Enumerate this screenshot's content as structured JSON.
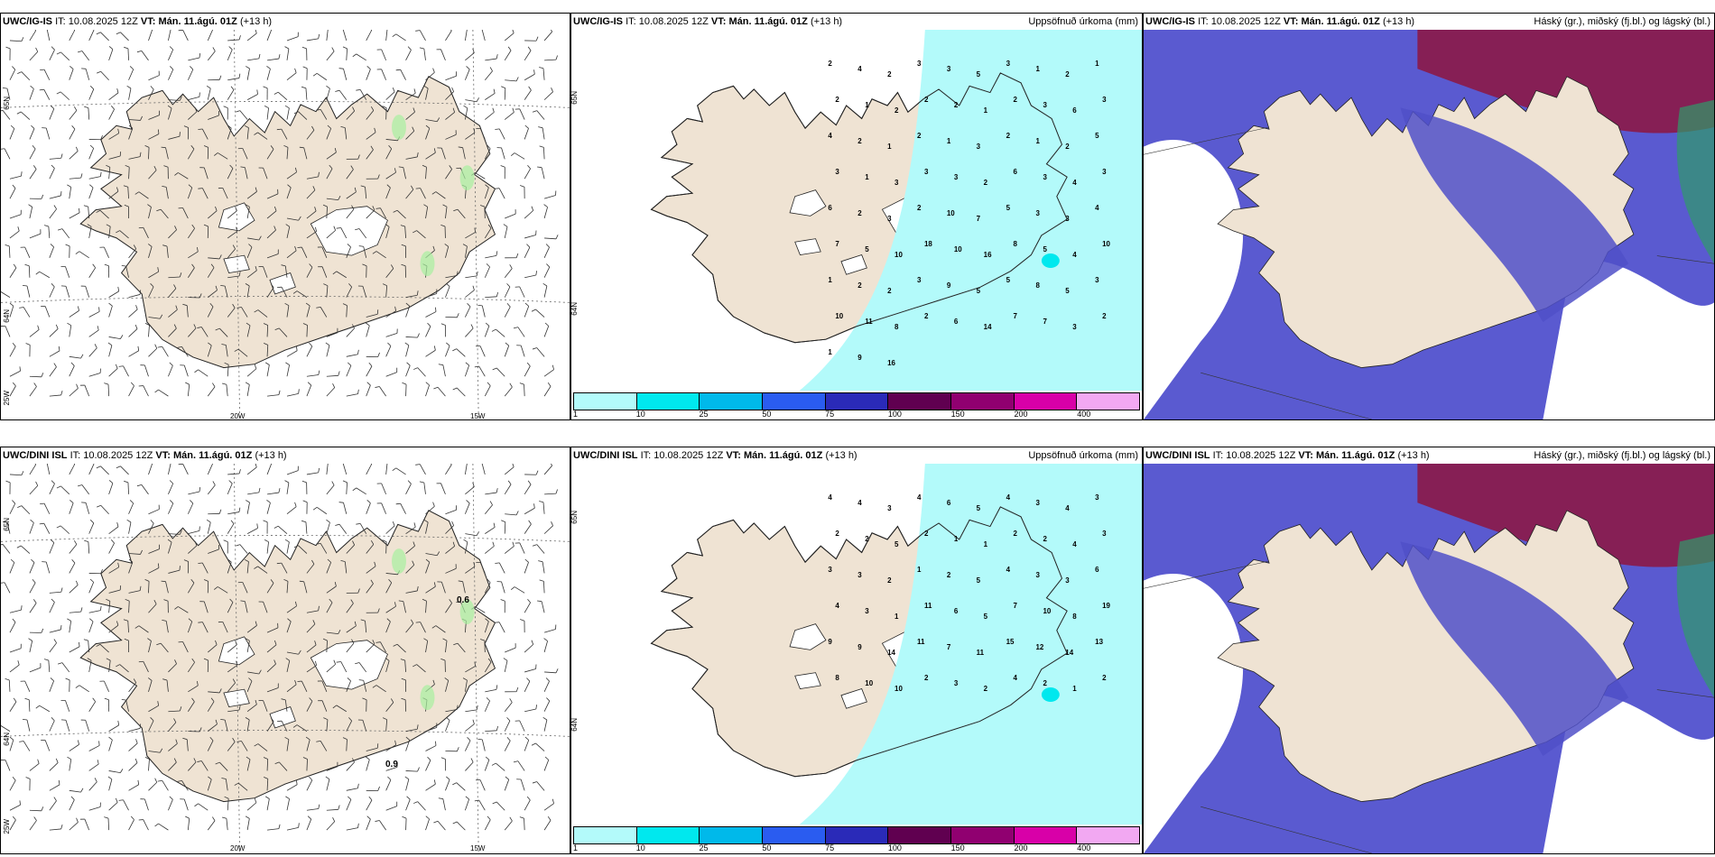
{
  "panels": {
    "top_wind": {
      "model": "UWC/IG-IS",
      "it_label": "IT:",
      "it": "10.08.2025 12Z",
      "vt_label": "VT:",
      "vt": "Mán. 11.ágú. 01Z",
      "lead": "(+13 h)",
      "title": "",
      "labels": {
        "n65": "65N",
        "n64": "64N",
        "w25": "25W",
        "w20": "20W",
        "w15": "15W"
      },
      "values": []
    },
    "top_precip": {
      "model": "UWC/IG-IS",
      "it_label": "IT:",
      "it": "10.08.2025 12Z",
      "vt_label": "VT:",
      "vt": "Mán. 11.ágú. 01Z",
      "lead": "(+13 h)",
      "title": "Uppsöfnuð úrkoma (mm)",
      "labels": {
        "n65": "65N",
        "n64": "64N"
      }
    },
    "top_cloud": {
      "model": "UWC/IG-IS",
      "it_label": "IT:",
      "it": "10.08.2025 12Z",
      "vt_label": "VT:",
      "vt": "Mán. 11.ágú. 01Z",
      "lead": "(+13 h)",
      "title": "Háský (gr.), miðský (fj.bl.) og lágský (bl.)"
    },
    "bottom_wind": {
      "model": "UWC/DINI ISL",
      "it_label": "IT:",
      "it": "10.08.2025 12Z",
      "vt_label": "VT:",
      "vt": "Mán. 11.ágú. 01Z",
      "lead": "(+13 h)",
      "title": "",
      "labels": {
        "n65": "65N",
        "n64": "64N",
        "w25": "25W",
        "w20": "20W",
        "w15": "15W"
      },
      "values": [
        "0.6",
        "0.9"
      ]
    },
    "bottom_precip": {
      "model": "UWC/DINI ISL",
      "it_label": "IT:",
      "it": "10.08.2025 12Z",
      "vt_label": "VT:",
      "vt": "Mán. 11.ágú. 01Z",
      "lead": "(+13 h)",
      "title": "Uppsöfnuð úrkoma (mm)",
      "labels": {
        "n65": "65N",
        "n64": "64N"
      }
    },
    "bottom_cloud": {
      "model": "UWC/DINI ISL",
      "it_label": "IT:",
      "it": "10.08.2025 12Z",
      "vt_label": "VT:",
      "vt": "Mán. 11.ágú. 01Z",
      "lead": "(+13 h)",
      "title": "Háský (gr.), miðský (fj.bl.) og lágský (bl.)"
    }
  },
  "colorbar": {
    "colors": [
      "#b3fafa",
      "#00e8ee",
      "#00b9ea",
      "#2a5cf0",
      "#2a2ab8",
      "#600050",
      "#900070",
      "#d800a8",
      "#f2a8f2"
    ],
    "ticks": [
      "1",
      "10",
      "25",
      "50",
      "75",
      "100",
      "150",
      "200",
      "400"
    ]
  },
  "precip_numbers_top": [
    {
      "v": "2"
    },
    {
      "v": "4"
    },
    {
      "v": "2"
    },
    {
      "v": "3"
    },
    {
      "v": "3"
    },
    {
      "v": "5"
    },
    {
      "v": "3"
    },
    {
      "v": "1"
    },
    {
      "v": "2"
    },
    {
      "v": "1"
    },
    {
      "v": "2"
    },
    {
      "v": "1"
    },
    {
      "v": "2"
    },
    {
      "v": "2"
    },
    {
      "v": "2"
    },
    {
      "v": "1"
    },
    {
      "v": "2"
    },
    {
      "v": "3"
    },
    {
      "v": "6"
    },
    {
      "v": "3"
    },
    {
      "v": "4"
    },
    {
      "v": "2"
    },
    {
      "v": "1"
    },
    {
      "v": "2"
    },
    {
      "v": "1"
    },
    {
      "v": "3"
    },
    {
      "v": "2"
    },
    {
      "v": "1"
    },
    {
      "v": "2"
    },
    {
      "v": "5"
    },
    {
      "v": "3"
    },
    {
      "v": "1"
    },
    {
      "v": "3"
    },
    {
      "v": "3"
    },
    {
      "v": "3"
    },
    {
      "v": "2"
    },
    {
      "v": "6"
    },
    {
      "v": "3"
    },
    {
      "v": "4"
    },
    {
      "v": "3"
    },
    {
      "v": "6"
    },
    {
      "v": "2"
    },
    {
      "v": "3"
    },
    {
      "v": "2"
    },
    {
      "v": "10"
    },
    {
      "v": "7"
    },
    {
      "v": "5"
    },
    {
      "v": "3"
    },
    {
      "v": "3"
    },
    {
      "v": "4"
    },
    {
      "v": "7"
    },
    {
      "v": "5"
    },
    {
      "v": "10"
    },
    {
      "v": "18"
    },
    {
      "v": "10"
    },
    {
      "v": "16"
    },
    {
      "v": "8"
    },
    {
      "v": "5"
    },
    {
      "v": "4"
    },
    {
      "v": "10"
    },
    {
      "v": "1"
    },
    {
      "v": "2"
    },
    {
      "v": "2"
    },
    {
      "v": "3"
    },
    {
      "v": "9"
    },
    {
      "v": "5"
    },
    {
      "v": "5"
    },
    {
      "v": "8"
    },
    {
      "v": "5"
    },
    {
      "v": "3"
    },
    {
      "v": "10"
    },
    {
      "v": "11"
    },
    {
      "v": "8"
    },
    {
      "v": "2"
    },
    {
      "v": "6"
    },
    {
      "v": "14"
    },
    {
      "v": "7"
    },
    {
      "v": "7"
    },
    {
      "v": "3"
    },
    {
      "v": "2"
    },
    {
      "v": "1"
    },
    {
      "v": "9"
    },
    {
      "v": "16"
    }
  ],
  "precip_numbers_bottom": [
    {
      "v": "4"
    },
    {
      "v": "4"
    },
    {
      "v": "3"
    },
    {
      "v": "4"
    },
    {
      "v": "6"
    },
    {
      "v": "5"
    },
    {
      "v": "4"
    },
    {
      "v": "3"
    },
    {
      "v": "4"
    },
    {
      "v": "3"
    },
    {
      "v": "2"
    },
    {
      "v": "2"
    },
    {
      "v": "5"
    },
    {
      "v": "2"
    },
    {
      "v": "1"
    },
    {
      "v": "1"
    },
    {
      "v": "2"
    },
    {
      "v": "2"
    },
    {
      "v": "4"
    },
    {
      "v": "3"
    },
    {
      "v": "3"
    },
    {
      "v": "3"
    },
    {
      "v": "2"
    },
    {
      "v": "1"
    },
    {
      "v": "2"
    },
    {
      "v": "5"
    },
    {
      "v": "4"
    },
    {
      "v": "3"
    },
    {
      "v": "3"
    },
    {
      "v": "6"
    },
    {
      "v": "4"
    },
    {
      "v": "3"
    },
    {
      "v": "1"
    },
    {
      "v": "11"
    },
    {
      "v": "6"
    },
    {
      "v": "5"
    },
    {
      "v": "7"
    },
    {
      "v": "10"
    },
    {
      "v": "8"
    },
    {
      "v": "19"
    },
    {
      "v": "9"
    },
    {
      "v": "9"
    },
    {
      "v": "14"
    },
    {
      "v": "11"
    },
    {
      "v": "7"
    },
    {
      "v": "11"
    },
    {
      "v": "15"
    },
    {
      "v": "12"
    },
    {
      "v": "14"
    },
    {
      "v": "13"
    },
    {
      "v": "8"
    },
    {
      "v": "10"
    },
    {
      "v": "10"
    },
    {
      "v": "2"
    },
    {
      "v": "3"
    },
    {
      "v": "2"
    },
    {
      "v": "4"
    },
    {
      "v": "2"
    },
    {
      "v": "1"
    },
    {
      "v": "2"
    }
  ]
}
